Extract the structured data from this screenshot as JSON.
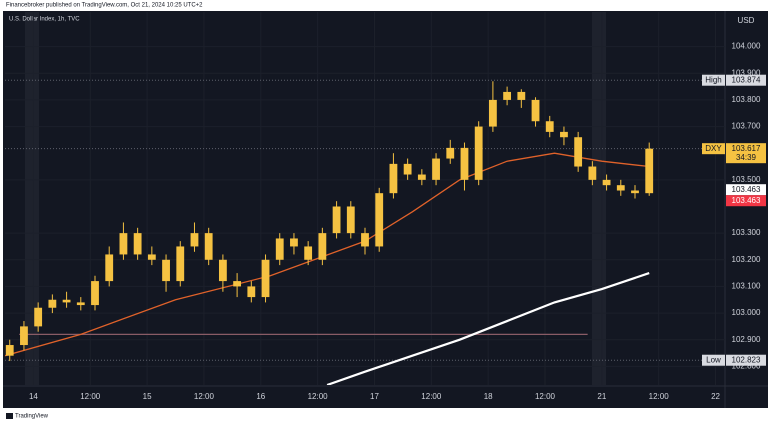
{
  "header": "Financebroker published on TradingView.com, Oct 21, 2024 10:25 UTC+2",
  "footer": "TradingView",
  "chart_data": {
    "type": "candlestick",
    "title": "U.S. Dollar Index, 1h, TVC",
    "currency": "USD",
    "color": "#f5c242",
    "x": [
      -5,
      -2,
      1,
      4,
      7,
      10,
      13,
      16,
      19,
      22,
      25,
      28,
      31,
      34,
      37,
      40,
      43,
      46,
      49,
      52,
      55,
      58,
      61,
      64,
      67,
      70,
      73,
      76,
      79,
      82,
      85,
      88,
      91,
      94,
      97,
      100,
      103,
      106,
      109,
      112,
      115,
      118,
      121,
      124,
      127,
      130
    ],
    "open": [
      102.84,
      102.88,
      102.95,
      103.02,
      103.05,
      103.04,
      103.03,
      103.12,
      103.22,
      103.3,
      103.22,
      103.2,
      103.12,
      103.25,
      103.3,
      103.2,
      103.12,
      103.1,
      103.06,
      103.2,
      103.28,
      103.25,
      103.2,
      103.3,
      103.4,
      103.3,
      103.25,
      103.45,
      103.56,
      103.52,
      103.5,
      103.58,
      103.62,
      103.5,
      103.7,
      103.8,
      103.83,
      103.8,
      103.72,
      103.68,
      103.66,
      103.55,
      103.5,
      103.48,
      103.46,
      103.45
    ],
    "high": [
      102.9,
      102.97,
      103.04,
      103.07,
      103.08,
      103.06,
      103.14,
      103.25,
      103.34,
      103.32,
      103.25,
      103.22,
      103.27,
      103.34,
      103.32,
      103.22,
      103.15,
      103.12,
      103.22,
      103.3,
      103.3,
      103.27,
      103.32,
      103.42,
      103.42,
      103.32,
      103.47,
      103.6,
      103.58,
      103.54,
      103.6,
      103.65,
      103.64,
      103.72,
      103.87,
      103.85,
      103.84,
      103.81,
      103.74,
      103.7,
      103.68,
      103.57,
      103.52,
      103.5,
      103.48,
      103.64
    ],
    "low": [
      102.82,
      102.86,
      102.93,
      103.0,
      103.02,
      103.01,
      103.01,
      103.1,
      103.2,
      103.2,
      103.18,
      103.08,
      103.1,
      103.23,
      103.18,
      103.08,
      103.06,
      103.04,
      103.04,
      103.18,
      103.22,
      103.18,
      103.18,
      103.28,
      103.28,
      103.22,
      103.23,
      103.43,
      103.5,
      103.48,
      103.48,
      103.56,
      103.46,
      103.48,
      103.68,
      103.78,
      103.77,
      103.7,
      103.66,
      103.63,
      103.53,
      103.48,
      103.46,
      103.44,
      103.43,
      103.44
    ],
    "close": [
      102.88,
      102.95,
      103.02,
      103.05,
      103.04,
      103.03,
      103.12,
      103.22,
      103.3,
      103.22,
      103.2,
      103.12,
      103.25,
      103.3,
      103.2,
      103.12,
      103.1,
      103.06,
      103.2,
      103.28,
      103.25,
      103.2,
      103.3,
      103.4,
      103.3,
      103.25,
      103.45,
      103.56,
      103.52,
      103.5,
      103.58,
      103.62,
      103.5,
      103.7,
      103.8,
      103.83,
      103.8,
      103.72,
      103.68,
      103.66,
      103.55,
      103.5,
      103.48,
      103.46,
      103.45,
      103.617
    ],
    "lines": [
      {
        "color": "#e0622a",
        "x": [
          -6,
          10,
          30,
          50,
          70,
          80,
          90,
          100,
          110,
          120,
          130
        ],
        "values": [
          102.84,
          102.92,
          103.05,
          103.14,
          103.27,
          103.38,
          103.5,
          103.57,
          103.6,
          103.57,
          103.55
        ]
      },
      {
        "color": "#ffffff",
        "x": [
          62,
          70,
          80,
          90,
          100,
          110,
          120,
          130
        ],
        "values": [
          102.73,
          102.78,
          102.84,
          102.9,
          102.97,
          103.04,
          103.09,
          103.15
        ]
      }
    ],
    "level": {
      "value": 102.92,
      "x": [
        -3,
        117
      ],
      "color": "#8a5c66"
    },
    "xlim": [
      -6,
      146
    ],
    "ylim": [
      102.73,
      104.13
    ],
    "xticks": [
      {
        "value": 0,
        "label": "14"
      },
      {
        "value": 12,
        "label": "12:00"
      },
      {
        "value": 24,
        "label": "15"
      },
      {
        "value": 36,
        "label": "12:00"
      },
      {
        "value": 48,
        "label": "16"
      },
      {
        "value": 60,
        "label": "12:00"
      },
      {
        "value": 72,
        "label": "17"
      },
      {
        "value": 84,
        "label": "12:00"
      },
      {
        "value": 96,
        "label": "18"
      },
      {
        "value": 108,
        "label": "12:00"
      },
      {
        "value": 120,
        "label": "21"
      },
      {
        "value": 132,
        "label": "12:00"
      },
      {
        "value": 144,
        "label": "22"
      }
    ],
    "yticks": [
      {
        "value": 104,
        "label": "104.000"
      },
      {
        "value": 103.9,
        "label": "103.900"
      },
      {
        "value": 103.8,
        "label": "103.800"
      },
      {
        "value": 103.7,
        "label": "103.700"
      },
      {
        "value": 103.5,
        "label": "103.500"
      },
      {
        "value": 103.3,
        "label": "103.300"
      },
      {
        "value": 103.2,
        "label": "103.200"
      },
      {
        "value": 103.1,
        "label": "103.100"
      },
      {
        "value": 103,
        "label": "103.000"
      },
      {
        "value": 102.9,
        "label": "102.900"
      },
      {
        "value": 102.8,
        "label": "102.800"
      }
    ],
    "price_labels": [
      {
        "name": "High",
        "value": 103.874,
        "bg": "#d9dbe1",
        "fg": "#131722"
      },
      {
        "name": "DXY",
        "value": 103.617,
        "countdown": "34:39",
        "bg": "#f5c242",
        "fg": "#131722"
      },
      {
        "value": 103.463,
        "bg": "#ffffff",
        "fg": "#131722"
      },
      {
        "value": 103.463,
        "bg": "#f23645",
        "fg": "#ffffff"
      },
      {
        "name": "Low",
        "value": 102.823,
        "bg": "#d9dbe1",
        "fg": "#131722"
      }
    ]
  }
}
